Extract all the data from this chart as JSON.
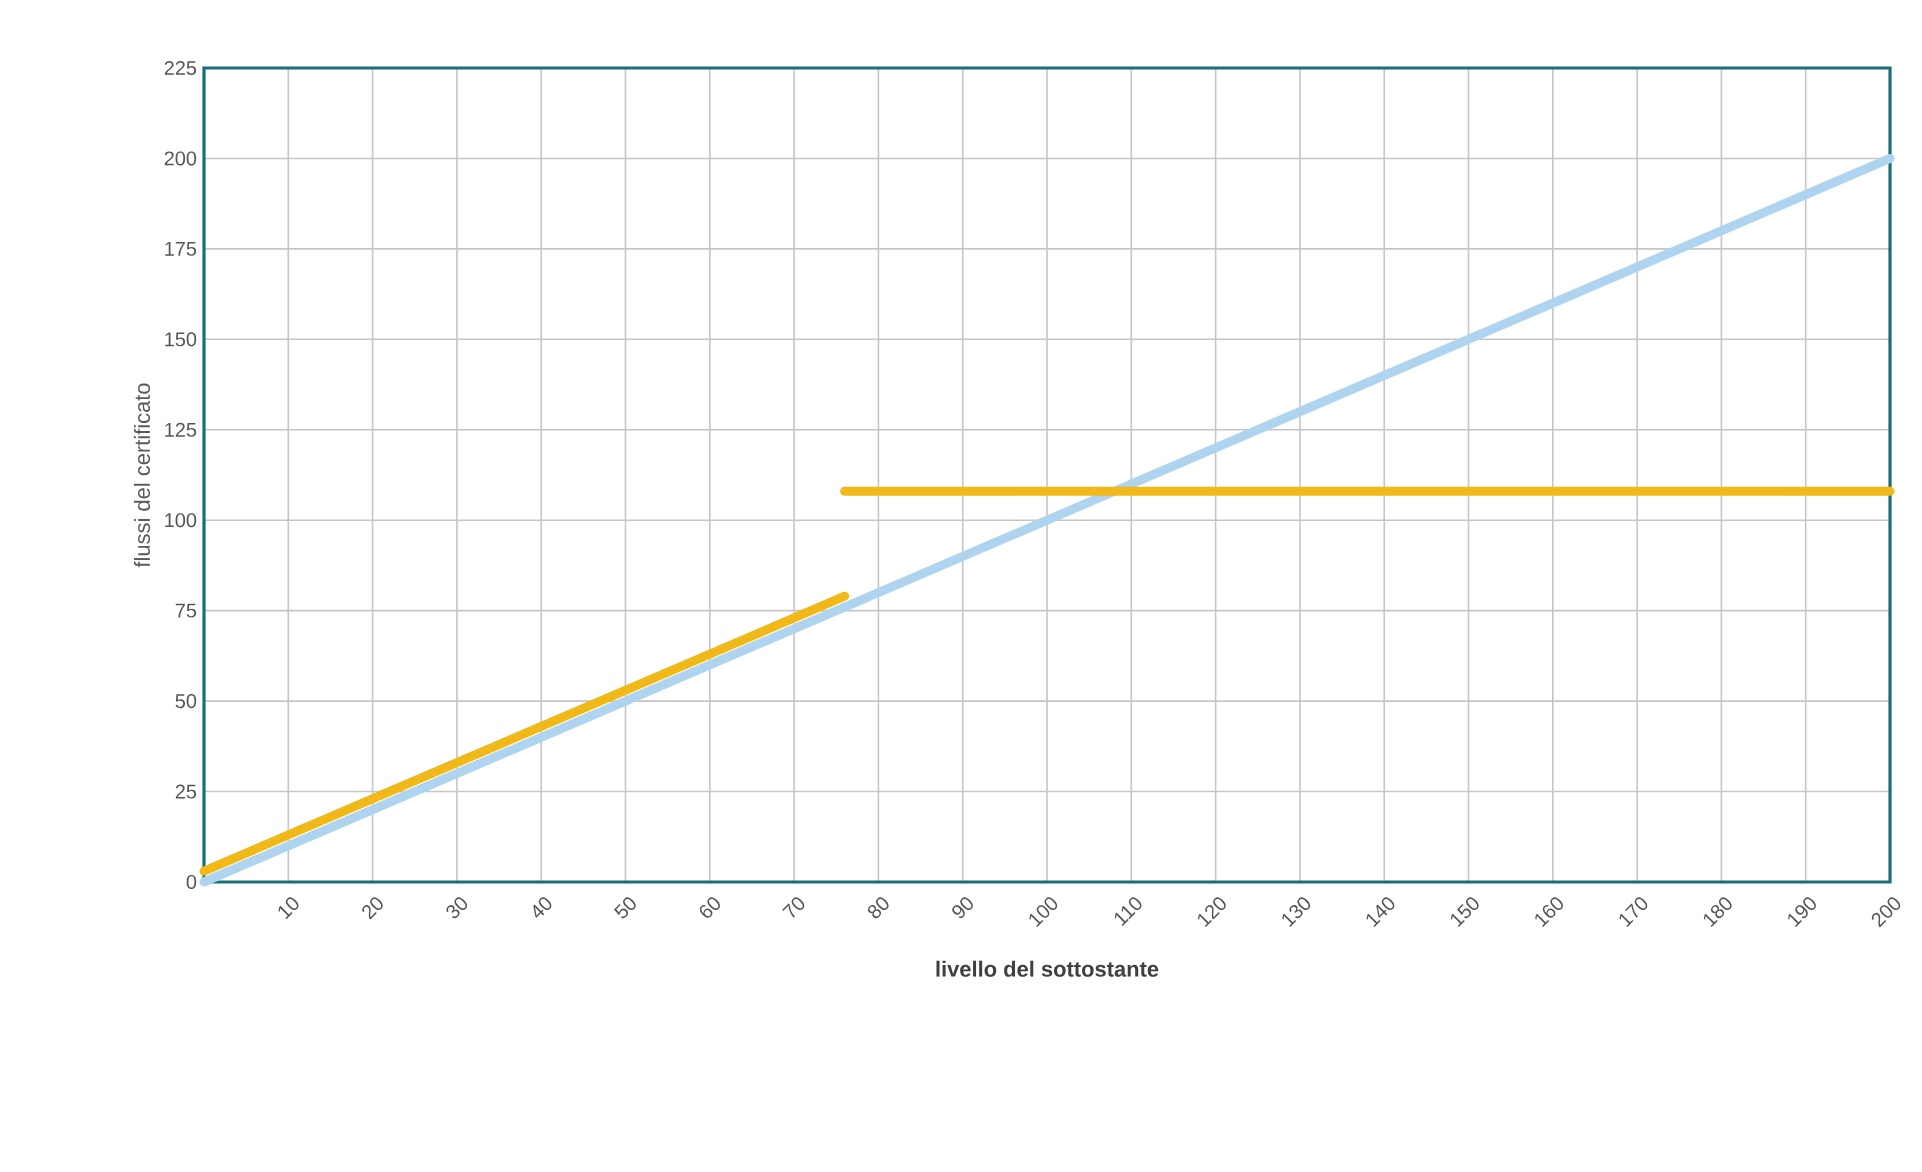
{
  "chart_data": {
    "type": "line",
    "xlabel": "livello del sottostante",
    "ylabel": "flussi del certificato",
    "xlim": [
      0,
      200
    ],
    "ylim": [
      0,
      225
    ],
    "xticks": [
      10,
      20,
      30,
      40,
      50,
      60,
      70,
      80,
      90,
      100,
      110,
      120,
      130,
      140,
      150,
      160,
      170,
      180,
      190,
      200
    ],
    "yticks": [
      0,
      25,
      50,
      75,
      100,
      125,
      150,
      175,
      200,
      225
    ],
    "grid": true,
    "marker": "none",
    "line_style": "solid",
    "series": [
      {
        "color": "#aed4f0",
        "x": [
          0,
          200
        ],
        "values": [
          0,
          200
        ]
      },
      {
        "color": "#f0b818",
        "x": [
          0,
          76
        ],
        "values": [
          3,
          79
        ]
      },
      {
        "color": "#f0b818",
        "x": [
          76,
          200
        ],
        "values": [
          108,
          108
        ]
      }
    ]
  }
}
